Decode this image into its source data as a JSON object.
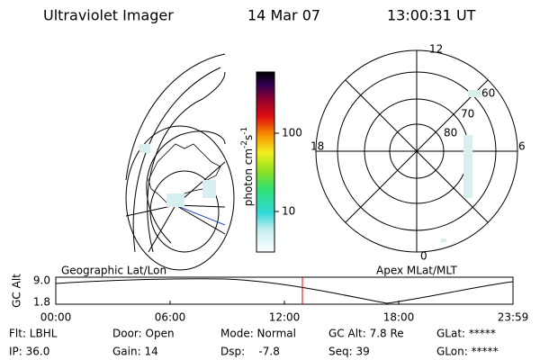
{
  "header": {
    "title": "Ultraviolet Imager",
    "date": "14 Mar 07",
    "time": "13:00:31 UT"
  },
  "colorbar": {
    "label": {
      "base": "photon cm",
      "exp1": "-2",
      "mid": "s",
      "exp2": "-1"
    },
    "ticks": [
      "100",
      "10"
    ]
  },
  "polar": {
    "clock": [
      "12",
      "18",
      "6",
      "0"
    ],
    "latitudes": [
      "80",
      "70",
      "60"
    ]
  },
  "altitude_plot": {
    "left_label": "Geographic Lat/Lon",
    "right_label": "Apex MLat/MLT",
    "y_axis_label": "GC Alt",
    "yticks": [
      "9.0",
      "1.8"
    ],
    "xticks": [
      "00:00",
      "06:00",
      "12:00",
      "18:00",
      "23:59"
    ]
  },
  "info": {
    "rows": [
      [
        "Flt: LBHL",
        "Door: Open",
        "Mode: Normal",
        "GC Alt: 7.8 Re",
        "GLat: *****"
      ],
      [
        "IP: 36.0",
        "Gain: 14",
        "Dsp:    -7.8",
        "Seq: 39",
        "GLon: *****"
      ]
    ]
  }
}
